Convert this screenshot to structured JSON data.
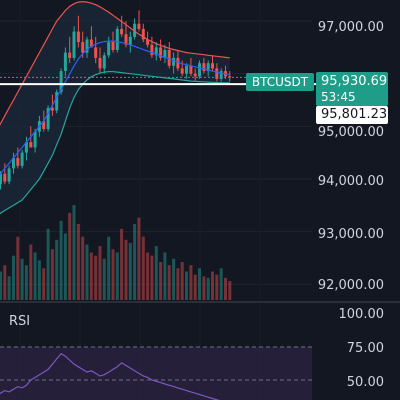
{
  "symbol": "BTCUSDT",
  "current_price": "95,930.69",
  "countdown": "53:45",
  "reference_price": "95,801.23",
  "price_axis": [
    "97,000.00",
    "96,000.00",
    "95,000.00",
    "94,000.00",
    "93,000.00",
    "92,000.00"
  ],
  "rsi": {
    "label": "RSI",
    "axis": [
      "100.00",
      "75.00",
      "50.00"
    ]
  },
  "colors": {
    "background": "#131722",
    "up": "#26a69a",
    "down": "#ef5350",
    "rsi_line": "#7e57c2",
    "band_upper": "#ef5350",
    "band_lower": "#26a69a",
    "middle_line": "#2962ff"
  },
  "chart_data": {
    "type": "candlestick",
    "ylim": [
      91700,
      97400
    ],
    "ohlc": [
      [
        93800,
        94000,
        93500,
        93900
      ],
      [
        93900,
        94150,
        93800,
        94100
      ],
      [
        94100,
        94300,
        93900,
        93950
      ],
      [
        93950,
        94250,
        93900,
        94200
      ],
      [
        94200,
        94500,
        94100,
        94400
      ],
      [
        94400,
        94600,
        94200,
        94250
      ],
      [
        94250,
        94550,
        94200,
        94500
      ],
      [
        94500,
        94800,
        94350,
        94700
      ],
      [
        94700,
        95000,
        94600,
        94600
      ],
      [
        94600,
        94950,
        94500,
        94900
      ],
      [
        94900,
        95200,
        94800,
        95100
      ],
      [
        95100,
        95300,
        94900,
        94950
      ],
      [
        94950,
        95400,
        94900,
        95350
      ],
      [
        95350,
        95600,
        95200,
        95300
      ],
      [
        95300,
        95700,
        95250,
        95650
      ],
      [
        95650,
        96100,
        95600,
        96050
      ],
      [
        96050,
        96500,
        95950,
        96400
      ],
      [
        96400,
        96700,
        96200,
        96300
      ],
      [
        96300,
        96900,
        96250,
        96800
      ],
      [
        96800,
        97100,
        96500,
        96600
      ],
      [
        96600,
        96800,
        96300,
        96400
      ],
      [
        96400,
        96700,
        96300,
        96650
      ],
      [
        96650,
        96900,
        96500,
        96500
      ],
      [
        96500,
        96700,
        96200,
        96300
      ],
      [
        96300,
        96500,
        96000,
        96100
      ],
      [
        96100,
        96400,
        96000,
        96350
      ],
      [
        96350,
        96700,
        96300,
        96600
      ],
      [
        96600,
        96800,
        96400,
        96450
      ],
      [
        96450,
        96900,
        96400,
        96850
      ],
      [
        96850,
        97100,
        96700,
        96750
      ],
      [
        96750,
        97000,
        96500,
        96550
      ],
      [
        96550,
        96800,
        96400,
        96700
      ],
      [
        96700,
        97050,
        96650,
        96950
      ],
      [
        96950,
        97200,
        96800,
        96850
      ],
      [
        96850,
        96950,
        96600,
        96650
      ],
      [
        96650,
        96800,
        96500,
        96550
      ],
      [
        96550,
        96700,
        96300,
        96350
      ],
      [
        96350,
        96600,
        96250,
        96500
      ],
      [
        96500,
        96650,
        96250,
        96300
      ],
      [
        96300,
        96550,
        96200,
        96450
      ],
      [
        96450,
        96600,
        96100,
        96150
      ],
      [
        96150,
        96400,
        96000,
        96300
      ],
      [
        96300,
        96450,
        96050,
        96100
      ],
      [
        96100,
        96250,
        95950,
        96000
      ],
      [
        96000,
        96200,
        95900,
        96150
      ],
      [
        96150,
        96300,
        95950,
        96000
      ],
      [
        96000,
        96100,
        95850,
        95950
      ],
      [
        95950,
        96250,
        95900,
        96200
      ],
      [
        96200,
        96300,
        96000,
        96050
      ],
      [
        96050,
        96250,
        95950,
        96200
      ],
      [
        96200,
        96350,
        96050,
        96100
      ],
      [
        96100,
        96200,
        95850,
        95900
      ],
      [
        95900,
        96100,
        95850,
        96050
      ],
      [
        96050,
        96150,
        95900,
        95950
      ],
      [
        95950,
        96050,
        95850,
        95930
      ]
    ],
    "volumes": [
      30,
      18,
      22,
      15,
      28,
      40,
      26,
      22,
      35,
      30,
      25,
      20,
      45,
      32,
      38,
      50,
      42,
      55,
      60,
      48,
      40,
      35,
      30,
      28,
      34,
      26,
      40,
      32,
      30,
      45,
      38,
      36,
      48,
      52,
      40,
      30,
      28,
      34,
      24,
      30,
      22,
      26,
      20,
      24,
      18,
      22,
      16,
      20,
      15,
      14,
      18,
      16,
      20,
      14,
      12
    ],
    "upper_band": [
      94900,
      95050,
      95200,
      95350,
      95500,
      95650,
      95800,
      95950,
      96100,
      96250,
      96400,
      96550,
      96700,
      96850,
      97000,
      97100,
      97200,
      97280,
      97330,
      97360,
      97370,
      97360,
      97340,
      97310,
      97270,
      97220,
      97170,
      97110,
      97050,
      96990,
      96930,
      96870,
      96810,
      96750,
      96700,
      96650,
      96610,
      96570,
      96540,
      96510,
      96480,
      96460,
      96440,
      96420,
      96400,
      96390,
      96380,
      96370,
      96360,
      96350,
      96340,
      96330,
      96320,
      96310,
      96300
    ],
    "lower_band": [
      93300,
      93350,
      93400,
      93450,
      93500,
      93550,
      93600,
      93700,
      93800,
      93900,
      94000,
      94150,
      94300,
      94450,
      94650,
      94850,
      95100,
      95350,
      95550,
      95700,
      95800,
      95880,
      95940,
      95980,
      96010,
      96030,
      96040,
      96040,
      96030,
      96020,
      96010,
      96000,
      95990,
      95980,
      95970,
      95960,
      95950,
      95940,
      95930,
      95920,
      95910,
      95900,
      95890,
      95880,
      95870,
      95860,
      95855,
      95850,
      95845,
      95840,
      95835,
      95830,
      95828,
      95826,
      95824
    ],
    "middle_band": [
      94000,
      94100,
      94200,
      94300,
      94400,
      94500,
      94600,
      94700,
      94800,
      94900,
      95000,
      95100,
      95250,
      95400,
      95550,
      95700,
      95850,
      96000,
      96150,
      96280,
      96380,
      96460,
      96520,
      96560,
      96590,
      96610,
      96620,
      96620,
      96610,
      96590,
      96570,
      96550,
      96520,
      96490,
      96460,
      96430,
      96400,
      96370,
      96340,
      96310,
      96280,
      96250,
      96220,
      96190,
      96170,
      96150,
      96130,
      96110,
      96090,
      96070,
      96050,
      96030,
      96010,
      95995,
      95980
    ],
    "rsi_values": [
      38,
      40,
      42,
      41,
      43,
      45,
      44,
      46,
      50,
      52,
      54,
      56,
      58,
      62,
      66,
      70,
      68,
      65,
      62,
      60,
      58,
      56,
      57,
      55,
      53,
      54,
      56,
      58,
      60,
      63,
      61,
      59,
      57,
      55,
      53,
      52,
      50,
      49,
      48,
      47,
      46,
      45,
      44,
      43,
      42,
      41,
      40,
      39,
      38,
      37,
      36,
      35,
      34,
      33,
      32
    ]
  }
}
